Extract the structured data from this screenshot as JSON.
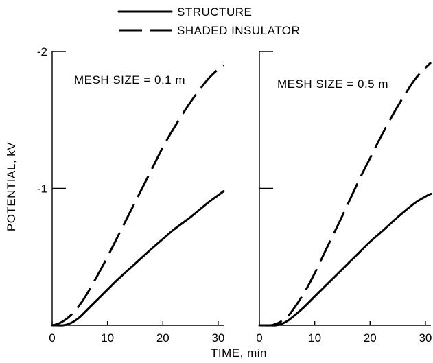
{
  "legend": [
    {
      "label": "STRUCTURE",
      "style": "solid"
    },
    {
      "label": "SHADED INSULATOR",
      "style": "dashed"
    }
  ],
  "xlabel": "TIME, min",
  "ylabel": "POTENTIAL, kV",
  "chart_data": [
    {
      "type": "line",
      "annotation": "MESH SIZE = 0.1 m",
      "xlim": [
        0,
        31
      ],
      "ylim": [
        0,
        -2
      ],
      "x_ticks": [
        "0",
        "10",
        "20",
        "30"
      ],
      "y_ticks": [
        "-1",
        "-2"
      ],
      "x_tick_values": [
        0,
        10,
        20,
        30
      ],
      "y_tick_values": [
        -1,
        -2
      ],
      "series": [
        {
          "name": "STRUCTURE",
          "x": [
            0,
            1,
            2,
            3,
            4,
            5,
            6,
            8,
            10,
            12,
            15,
            18,
            20,
            22,
            25,
            28,
            30,
            31
          ],
          "y": [
            0,
            0,
            0,
            -0.01,
            -0.03,
            -0.06,
            -0.1,
            -0.18,
            -0.26,
            -0.34,
            -0.45,
            -0.56,
            -0.63,
            -0.7,
            -0.79,
            -0.89,
            -0.95,
            -0.98
          ]
        },
        {
          "name": "SHADED INSULATOR",
          "x": [
            0,
            1,
            2,
            3,
            4,
            5,
            6,
            8,
            10,
            12,
            15,
            18,
            20,
            22,
            25,
            28,
            30,
            31
          ],
          "y": [
            0,
            -0.01,
            -0.03,
            -0.06,
            -0.1,
            -0.15,
            -0.21,
            -0.35,
            -0.5,
            -0.66,
            -0.9,
            -1.14,
            -1.3,
            -1.44,
            -1.63,
            -1.79,
            -1.87,
            -1.9
          ]
        }
      ]
    },
    {
      "type": "line",
      "annotation": "MESH SIZE = 0.5 m",
      "xlim": [
        0,
        31
      ],
      "ylim": [
        0,
        -2
      ],
      "x_ticks": [
        "0",
        "10",
        "20",
        "30"
      ],
      "y_ticks": [],
      "x_tick_values": [
        0,
        10,
        20,
        30
      ],
      "y_tick_values": [
        -1,
        -2
      ],
      "series": [
        {
          "name": "STRUCTURE",
          "x": [
            0,
            1,
            2,
            3,
            4,
            5,
            6,
            8,
            10,
            12,
            15,
            18,
            20,
            22,
            25,
            28,
            30,
            31
          ],
          "y": [
            0,
            0,
            0,
            0,
            -0.01,
            -0.03,
            -0.06,
            -0.13,
            -0.21,
            -0.29,
            -0.41,
            -0.53,
            -0.61,
            -0.68,
            -0.79,
            -0.89,
            -0.94,
            -0.96
          ]
        },
        {
          "name": "SHADED INSULATOR",
          "x": [
            0,
            1,
            2,
            3,
            4,
            5,
            6,
            8,
            10,
            12,
            15,
            18,
            20,
            22,
            25,
            28,
            30,
            31
          ],
          "y": [
            0,
            0,
            0,
            -0.01,
            -0.03,
            -0.06,
            -0.11,
            -0.23,
            -0.38,
            -0.55,
            -0.8,
            -1.06,
            -1.22,
            -1.38,
            -1.6,
            -1.79,
            -1.88,
            -1.92
          ]
        }
      ]
    }
  ]
}
